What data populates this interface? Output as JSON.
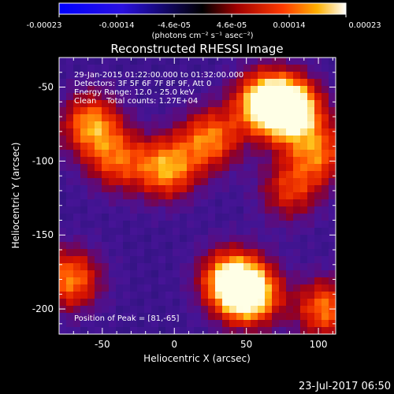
{
  "colorbar": {
    "tick_labels": [
      "-0.00023",
      "-0.00014",
      "-4.6e-05",
      "4.6e-05",
      "0.00014",
      "0.00023"
    ],
    "unit": "(photons cm⁻² s⁻¹ asec⁻²)",
    "range": [
      -0.00023,
      0.00023
    ]
  },
  "chart_data": {
    "type": "heatmap",
    "title": "Reconstructed RHESSI Image",
    "xlabel": "Heliocentric X (arcsec)",
    "ylabel": "Heliocentric Y (arcsec)",
    "xlim": [
      -80,
      112
    ],
    "ylim": [
      -217,
      -30
    ],
    "x_ticks": [
      -50,
      0,
      50,
      100
    ],
    "y_ticks": [
      -50,
      -100,
      -150,
      -200
    ],
    "colormap": "blue-purple-red-orange-yellow-white",
    "info_lines": [
      "29-Jan-2015 01:22:00.000 to 01:32:00.000",
      "Detectors: 3F 5F 6F 7F 8F 9F, Att 0",
      "Energy Range: 12.0 - 25.0 keV",
      "Clean    Total counts: 1.27E+04"
    ],
    "peak_label": "Position of Peak = [81,-65]",
    "peak": [
      81,
      -65
    ],
    "sources": [
      {
        "x": 81,
        "y": -65,
        "amp": 1.0
      },
      {
        "x": 62,
        "y": -60,
        "amp": 0.8
      },
      {
        "x": 52,
        "y": -190,
        "amp": 0.92
      },
      {
        "x": 38,
        "y": -180,
        "amp": 0.7
      },
      {
        "x": -5,
        "y": -105,
        "amp": 0.68
      },
      {
        "x": 25,
        "y": -85,
        "amp": 0.62
      },
      {
        "x": -58,
        "y": -75,
        "amp": 0.66
      },
      {
        "x": -40,
        "y": -100,
        "amp": 0.5
      },
      {
        "x": -72,
        "y": -180,
        "amp": 0.64
      },
      {
        "x": 100,
        "y": -95,
        "amp": 0.55
      },
      {
        "x": 105,
        "y": -200,
        "amp": 0.62
      },
      {
        "x": 80,
        "y": -120,
        "amp": 0.45
      }
    ]
  },
  "footer": {
    "timestamp": "23-Jul-2017 06:50"
  }
}
